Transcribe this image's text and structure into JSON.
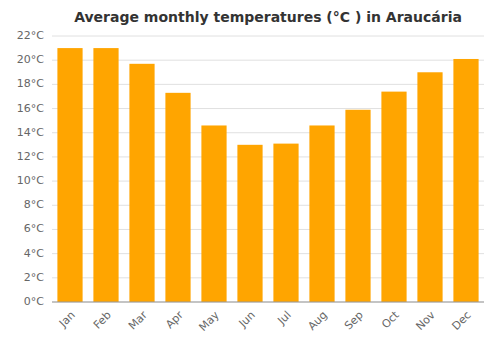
{
  "chart_data": {
    "type": "bar",
    "title": "Average monthly temperatures (°C ) in Araucária",
    "categories": [
      "Jan",
      "Feb",
      "Mar",
      "Apr",
      "May",
      "Jun",
      "Jul",
      "Aug",
      "Sep",
      "Oct",
      "Nov",
      "Dec"
    ],
    "values": [
      21.0,
      21.0,
      19.7,
      17.3,
      14.6,
      13.0,
      13.1,
      14.6,
      15.9,
      17.4,
      19.0,
      20.1
    ],
    "color": "#FFA500",
    "ylim": [
      0,
      22
    ],
    "yticks": [
      {
        "value": 0,
        "label": "0°C"
      },
      {
        "value": 2,
        "label": "2°C"
      },
      {
        "value": 4,
        "label": "4°C"
      },
      {
        "value": 6,
        "label": "6°C"
      },
      {
        "value": 8,
        "label": "8°C"
      },
      {
        "value": 10,
        "label": "10°C"
      },
      {
        "value": 12,
        "label": "12°C"
      },
      {
        "value": 14,
        "label": "14°C"
      },
      {
        "value": 16,
        "label": "16°C"
      },
      {
        "value": 18,
        "label": "18°C"
      },
      {
        "value": 20,
        "label": "20°C"
      },
      {
        "value": 22,
        "label": "22°C"
      }
    ],
    "grid": true
  }
}
